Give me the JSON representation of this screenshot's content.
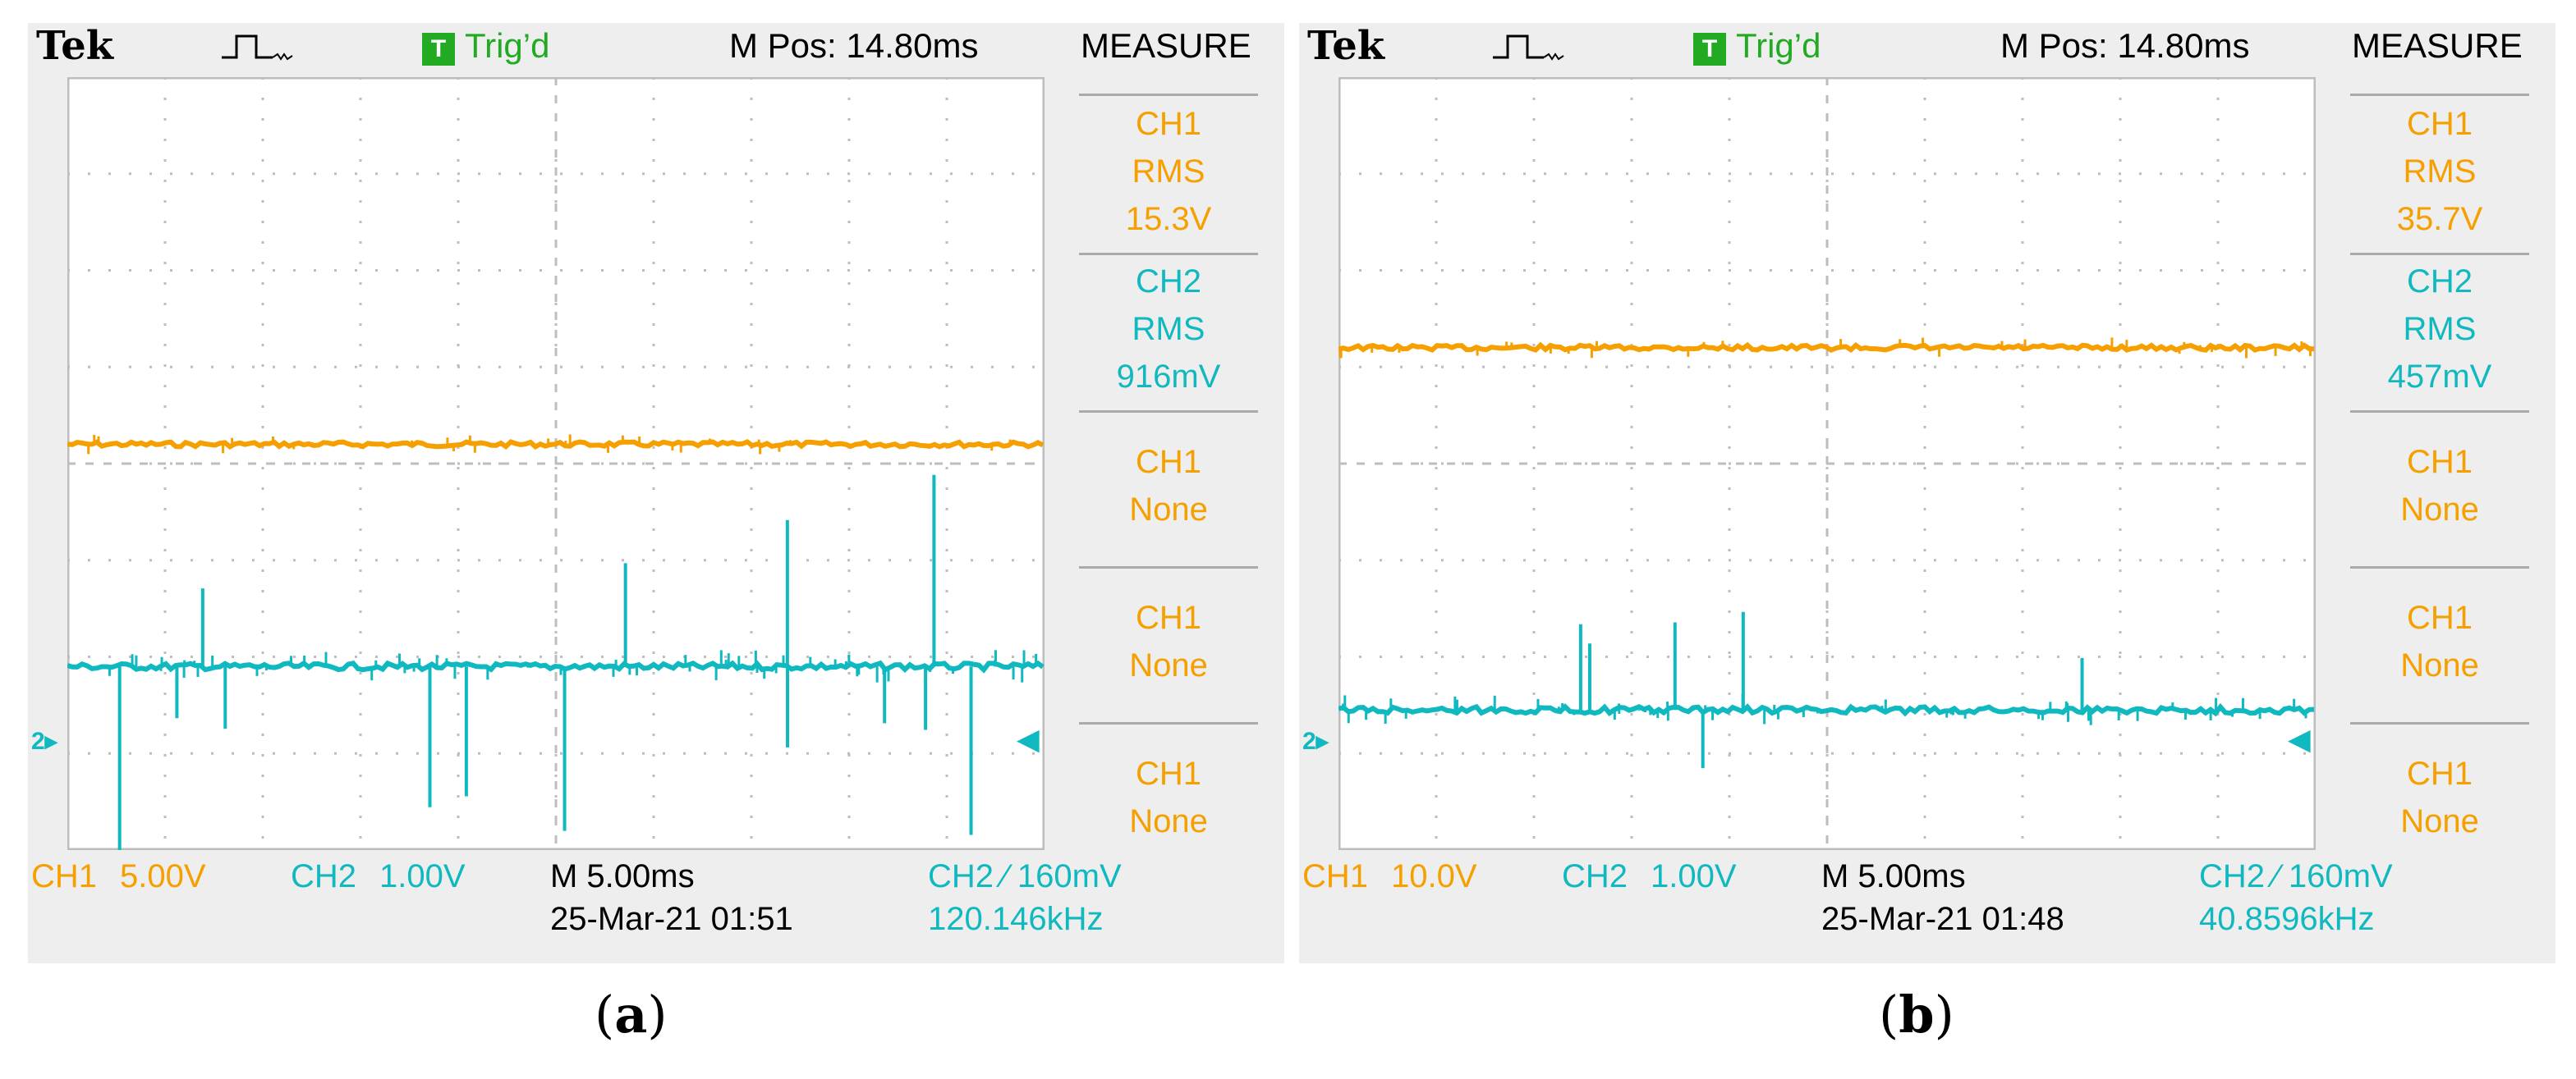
{
  "panels": [
    {
      "brand": "Tek",
      "trig_status_icon": "T",
      "trig_status": "Trig’d",
      "mpos": "M Pos: 14.80ms",
      "measure_title": "MEASURE",
      "measurements": [
        {
          "lines": [
            "CH1",
            "RMS",
            "15.3V"
          ],
          "color": "#f5a000",
          "secondary_color": "#f5a000"
        },
        {
          "lines": [
            "CH2",
            "RMS",
            "916mV"
          ],
          "color": "#10b8c0",
          "secondary_color": "#10b8c0"
        },
        {
          "lines": [
            "CH1",
            "None"
          ],
          "color": "#f5a000"
        },
        {
          "lines": [
            "CH1",
            "None"
          ],
          "color": "#f5a000"
        },
        {
          "lines": [
            "CH1",
            "None"
          ],
          "color": "#f5a000"
        }
      ],
      "ch1_label": "CH1",
      "ch1_scale": "5.00V",
      "ch2_label": "CH2",
      "ch2_scale": "1.00V",
      "timebase": "M 5.00ms",
      "datetime": "25-Mar-21 01:51",
      "trigger": "CH2 ⁄ 160mV",
      "frequency": "120.146kHz",
      "caption_open": "(",
      "caption_letter": "a",
      "caption_close": ")",
      "ch1_level": 4.2,
      "ch2_level": 1.9
    },
    {
      "brand": "Tek",
      "trig_status_icon": "T",
      "trig_status": "Trig’d",
      "mpos": "M Pos: 14.80ms",
      "measure_title": "MEASURE",
      "measurements": [
        {
          "lines": [
            "CH1",
            "RMS",
            "35.7V"
          ],
          "color": "#f5a000"
        },
        {
          "lines": [
            "CH2",
            "RMS",
            "457mV"
          ],
          "color": "#10b8c0"
        },
        {
          "lines": [
            "CH1",
            "None"
          ],
          "color": "#f5a000"
        },
        {
          "lines": [
            "CH1",
            "None"
          ],
          "color": "#f5a000"
        },
        {
          "lines": [
            "CH1",
            "None"
          ],
          "color": "#f5a000"
        }
      ],
      "ch1_label": "CH1",
      "ch1_scale": "10.0V",
      "ch2_label": "CH2",
      "ch2_scale": "1.00V",
      "timebase": "M 5.00ms",
      "datetime": "25-Mar-21 01:48",
      "trigger": "CH2 ⁄ 160mV",
      "frequency": "40.8596kHz",
      "caption_open": "(",
      "caption_letter": "b",
      "caption_close": ")",
      "ch1_level": 5.2,
      "ch2_level": 1.45
    }
  ],
  "colors": {
    "ch1": "#f5a000",
    "ch2": "#10b8c0",
    "grid": "#bdbdbd",
    "trig": "#22aa22"
  },
  "ground_marker_label": "2▸"
}
